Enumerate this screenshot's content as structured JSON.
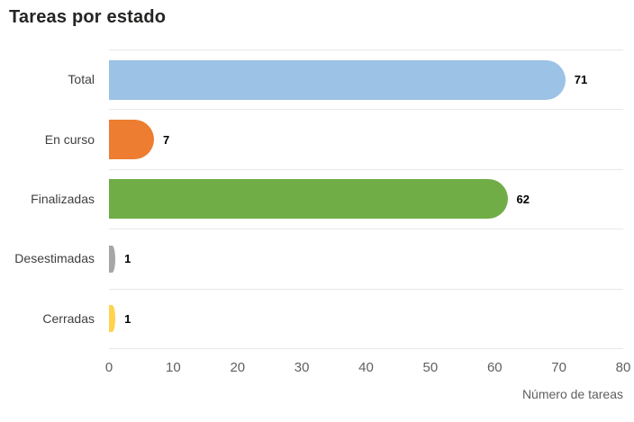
{
  "title": "Tareas por estado",
  "chart_data": {
    "type": "bar",
    "orientation": "horizontal",
    "title": "Tareas por estado",
    "categories": [
      "Total",
      "En curso",
      "Finalizadas",
      "Desestimadas",
      "Cerradas"
    ],
    "values": [
      71,
      7,
      62,
      1,
      1
    ],
    "value_labels": [
      "71",
      "7",
      "62",
      "1",
      "1"
    ],
    "colors": [
      "#9CC2E5",
      "#ED7D31",
      "#70AD47",
      "#A6A6A6",
      "#FFD34F"
    ],
    "xlabel": "Número de tareas",
    "ylabel": "",
    "xlim": [
      0,
      80
    ],
    "xticks": [
      0,
      10,
      20,
      30,
      40,
      50,
      60,
      70,
      80
    ],
    "grid": "horizontal row separators only",
    "legend": "none",
    "bar_style": "rounded right cap"
  }
}
